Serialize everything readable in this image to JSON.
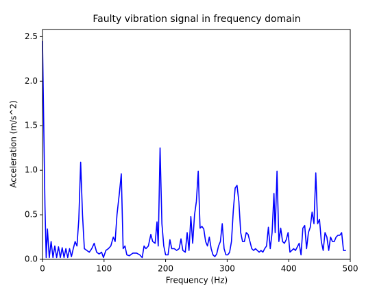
{
  "chart_data": {
    "type": "line",
    "title": "Faulty vibration signal in frequency domain",
    "xlabel": "Frequency (Hz)",
    "ylabel": "Acceleration (m/s^2)",
    "xlim": [
      0,
      500
    ],
    "ylim": [
      0,
      2.58
    ],
    "xticks": [
      0,
      100,
      200,
      300,
      400,
      500
    ],
    "yticks": [
      {
        "value": 0,
        "label": "0.0"
      },
      0.5,
      {
        "value": 1,
        "label": "1.0"
      },
      1.5,
      {
        "value": 2,
        "label": "2.0"
      },
      2.5
    ],
    "series": [
      {
        "color": "#0000ff",
        "x": [
          0,
          4,
          6,
          8,
          11,
          14,
          17,
          20,
          23,
          26,
          29,
          32,
          35,
          38,
          41,
          44,
          47,
          50,
          53,
          56,
          59,
          62,
          65,
          68,
          72,
          76,
          80,
          84,
          88,
          92,
          96,
          99,
          103,
          107,
          111,
          115,
          118,
          121,
          125,
          128,
          131,
          134,
          137,
          141,
          147,
          153,
          158,
          162,
          165,
          168,
          172,
          176,
          179,
          183,
          186,
          188,
          191,
          194,
          197,
          200,
          204,
          207,
          210,
          214,
          218,
          222,
          225,
          228,
          232,
          235,
          238,
          241,
          244,
          247,
          250,
          253,
          256,
          259,
          262,
          265,
          268,
          271,
          274,
          277,
          280,
          283,
          286,
          289,
          292,
          295,
          298,
          301,
          304,
          307,
          310,
          313,
          316,
          319,
          322,
          325,
          328,
          331,
          334,
          337,
          340,
          343,
          346,
          349,
          352,
          355,
          358,
          361,
          364,
          367,
          370,
          373,
          376,
          378,
          381,
          384,
          387,
          390,
          393,
          396,
          399,
          402,
          405,
          408,
          411,
          414,
          417,
          420,
          423,
          426,
          429,
          432,
          435,
          438,
          441,
          444,
          447,
          450,
          453,
          456,
          459,
          462,
          465,
          468,
          471,
          474,
          477,
          480,
          483,
          486,
          489,
          493
        ],
        "values": [
          2.45,
          0.6,
          0.02,
          0.34,
          0.02,
          0.2,
          0.02,
          0.15,
          0.02,
          0.14,
          0.02,
          0.13,
          0.02,
          0.12,
          0.02,
          0.12,
          0.03,
          0.12,
          0.2,
          0.15,
          0.45,
          1.09,
          0.5,
          0.12,
          0.1,
          0.08,
          0.12,
          0.18,
          0.08,
          0.06,
          0.08,
          0.02,
          0.1,
          0.12,
          0.15,
          0.25,
          0.2,
          0.5,
          0.75,
          0.96,
          0.12,
          0.15,
          0.05,
          0.04,
          0.07,
          0.07,
          0.05,
          0.02,
          0.15,
          0.12,
          0.15,
          0.28,
          0.2,
          0.18,
          0.42,
          0.15,
          1.25,
          0.4,
          0.15,
          0.05,
          0.05,
          0.22,
          0.12,
          0.12,
          0.1,
          0.12,
          0.23,
          0.1,
          0.08,
          0.3,
          0.1,
          0.48,
          0.18,
          0.5,
          0.65,
          0.99,
          0.35,
          0.37,
          0.34,
          0.2,
          0.15,
          0.25,
          0.12,
          0.05,
          0.03,
          0.06,
          0.15,
          0.2,
          0.4,
          0.12,
          0.05,
          0.05,
          0.08,
          0.2,
          0.55,
          0.8,
          0.83,
          0.65,
          0.3,
          0.2,
          0.2,
          0.3,
          0.28,
          0.2,
          0.12,
          0.1,
          0.12,
          0.1,
          0.08,
          0.1,
          0.08,
          0.12,
          0.15,
          0.36,
          0.12,
          0.3,
          0.74,
          0.3,
          0.99,
          0.2,
          0.35,
          0.2,
          0.18,
          0.22,
          0.3,
          0.08,
          0.1,
          0.12,
          0.1,
          0.14,
          0.18,
          0.05,
          0.35,
          0.38,
          0.12,
          0.3,
          0.36,
          0.53,
          0.4,
          0.97,
          0.4,
          0.45,
          0.2,
          0.1,
          0.3,
          0.25,
          0.1,
          0.25,
          0.2,
          0.2,
          0.25,
          0.27,
          0.27,
          0.3,
          0.1,
          0.1
        ]
      }
    ]
  }
}
